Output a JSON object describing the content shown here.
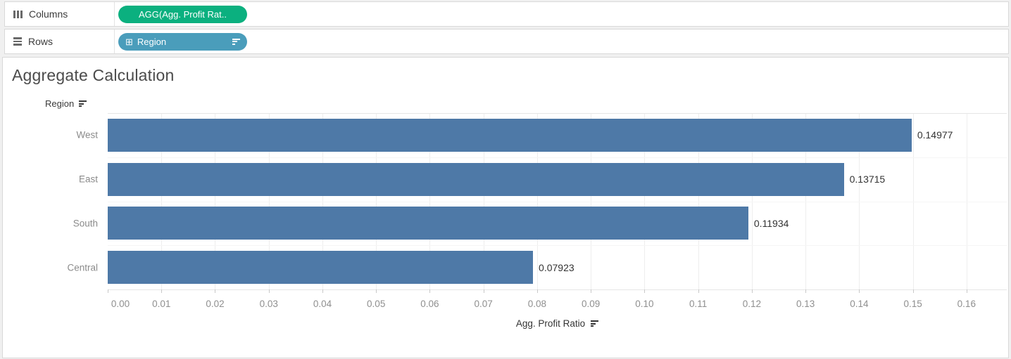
{
  "shelves": {
    "columns": {
      "label": "Columns",
      "pill": {
        "label": "AGG(Agg. Profit Rat..",
        "color": "#0bb07f"
      }
    },
    "rows": {
      "label": "Rows",
      "pill": {
        "label": "Region",
        "expand_icon": "⊞",
        "color": "#4a9dbb",
        "sorted": true
      }
    }
  },
  "sheet": {
    "title": "Aggregate Calculation",
    "row_field_header": "Region",
    "axis_title": "Agg. Profit Ratio"
  },
  "chart_data": {
    "type": "bar",
    "orientation": "horizontal",
    "title": "Aggregate Calculation",
    "categories": [
      "West",
      "East",
      "South",
      "Central"
    ],
    "values": [
      0.14977,
      0.13715,
      0.11934,
      0.07923
    ],
    "value_labels": [
      "0.14977",
      "0.13715",
      "0.11934",
      "0.07923"
    ],
    "xlabel": "Agg. Profit Ratio",
    "ylabel": "Region",
    "x_ticks": [
      "0.00",
      "0.01",
      "0.02",
      "0.03",
      "0.04",
      "0.05",
      "0.06",
      "0.07",
      "0.08",
      "0.09",
      "0.10",
      "0.11",
      "0.12",
      "0.13",
      "0.14",
      "0.15",
      "0.16"
    ],
    "xlim": [
      0,
      0.1675
    ],
    "grid": true,
    "legend": false,
    "bar_color": "#4e79a7",
    "gridline_color": "#eeeeee"
  }
}
